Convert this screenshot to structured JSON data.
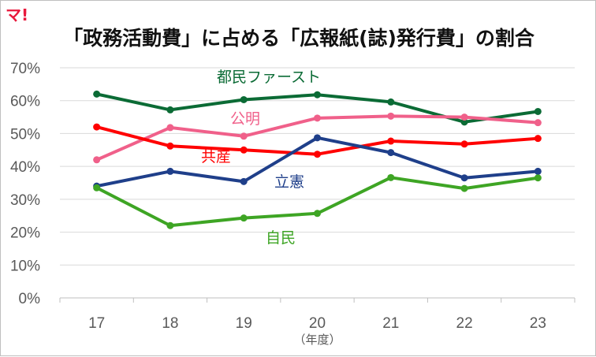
{
  "logo": "マ!",
  "chart_data": {
    "type": "line",
    "title": "「政務活動費」に占める「広報紙(誌)発行費」の割合",
    "xlabel": "（年度）",
    "ylabel": "",
    "categories": [
      "17",
      "18",
      "19",
      "20",
      "21",
      "22",
      "23"
    ],
    "ylim": [
      0,
      70
    ],
    "yticks": [
      0,
      10,
      20,
      30,
      40,
      50,
      60,
      70
    ],
    "ytick_labels": [
      "0%",
      "10%",
      "20%",
      "30%",
      "40%",
      "50%",
      "60%",
      "70%"
    ],
    "grid": "horizontal",
    "legend": "direct labels",
    "series": [
      {
        "name": "都民ファースト",
        "color": "#0b6b35",
        "values": [
          62,
          57.2,
          60.3,
          61.8,
          59.6,
          53.5,
          56.7
        ]
      },
      {
        "name": "公明",
        "color": "#f0608a",
        "values": [
          42,
          51.8,
          49.2,
          54.7,
          55.3,
          55,
          53.3
        ]
      },
      {
        "name": "共産",
        "color": "#ff0000",
        "values": [
          52,
          46.2,
          45,
          43.7,
          47.7,
          46.8,
          48.5
        ]
      },
      {
        "name": "立憲",
        "color": "#1f3f8a",
        "values": [
          34,
          38.5,
          35.4,
          48.7,
          44.2,
          36.5,
          38.5
        ]
      },
      {
        "name": "自民",
        "color": "#3ea524",
        "values": [
          33.5,
          22,
          24.3,
          25.7,
          36.6,
          33.3,
          36.5
        ]
      }
    ]
  }
}
